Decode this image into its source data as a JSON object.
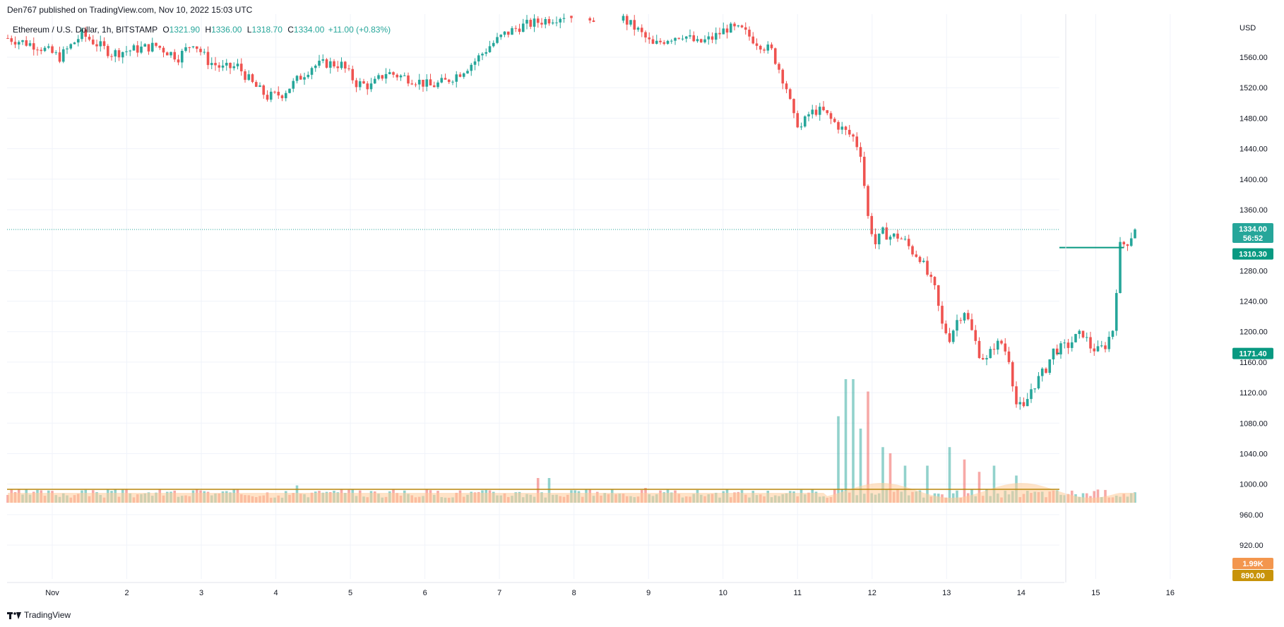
{
  "header": {
    "published_line": "Den767 published on TradingView.com, Nov 10, 2022 15:03 UTC"
  },
  "legend": {
    "symbol": "Ethereum / U.S. Dollar, 1h, BITSTAMP",
    "open_label": "O",
    "open_value": "1321.90",
    "high_label": "H",
    "high_value": "1336.00",
    "low_label": "L",
    "low_value": "1318.70",
    "close_label": "C",
    "close_value": "1334.00",
    "change": "+11.00 (+0.83%)"
  },
  "footer": {
    "brand": "TradingView"
  },
  "colors": {
    "up": "#26a69a",
    "down": "#ef5350",
    "level_line": "#089981",
    "volume_ma_line": "#b8860b",
    "volume_ma_fill": "#ffcc99",
    "grid": "#f0f3fa",
    "axis_text": "#131722"
  },
  "chart_data": {
    "type": "candlestick",
    "symbol": "ETHUSD",
    "interval": "1h",
    "y_axis": {
      "unit": "USD",
      "ticks": [
        1560,
        1520,
        1480,
        1440,
        1400,
        1360,
        1280,
        1240,
        1200,
        1160,
        1120,
        1080,
        1040,
        1000,
        960,
        920
      ],
      "tick_labels": [
        "1560.00",
        "1520.00",
        "1480.00",
        "1440.00",
        "1400.00",
        "1360.00",
        "1280.00",
        "1240.00",
        "1200.00",
        "1160.00",
        "1120.00",
        "1080.00",
        "1040.00",
        "1000.00",
        "960.00",
        "920.00"
      ],
      "range": [
        880,
        1600
      ]
    },
    "x_axis": {
      "tick_labels": [
        "Nov",
        "2",
        "3",
        "4",
        "5",
        "6",
        "7",
        "8",
        "9",
        "10",
        "11",
        "12",
        "13",
        "14",
        "15",
        "16"
      ]
    },
    "price_badges": {
      "last_price": "1334.00",
      "countdown": "56:52",
      "level_upper": "1310.30",
      "level_lower": "1171.40",
      "volume_last": "1.99K",
      "volume_ma": "890.00"
    },
    "horizontal_levels": [
      1310.3,
      1171.4
    ],
    "last_price": 1334.0,
    "price_anchors": [
      [
        0,
        1585
      ],
      [
        8,
        1575
      ],
      [
        14,
        1560
      ],
      [
        20,
        1590
      ],
      [
        28,
        1565
      ],
      [
        34,
        1570
      ],
      [
        40,
        1575
      ],
      [
        46,
        1560
      ],
      [
        50,
        1580
      ],
      [
        54,
        1555
      ],
      [
        58,
        1545
      ],
      [
        62,
        1548
      ],
      [
        66,
        1525
      ],
      [
        70,
        1508
      ],
      [
        74,
        1512
      ],
      [
        78,
        1530
      ],
      [
        82,
        1548
      ],
      [
        86,
        1552
      ],
      [
        90,
        1550
      ],
      [
        94,
        1526
      ],
      [
        98,
        1522
      ],
      [
        102,
        1540
      ],
      [
        106,
        1535
      ],
      [
        110,
        1530
      ],
      [
        114,
        1522
      ],
      [
        118,
        1528
      ],
      [
        122,
        1540
      ],
      [
        126,
        1555
      ],
      [
        130,
        1575
      ],
      [
        134,
        1590
      ],
      [
        138,
        1600
      ],
      [
        142,
        1605
      ],
      [
        146,
        1610
      ],
      [
        150,
        1615
      ],
      [
        154,
        1618
      ],
      [
        158,
        1612
      ],
      [
        162,
        1620
      ],
      [
        166,
        1610
      ],
      [
        170,
        1595
      ],
      [
        174,
        1575
      ],
      [
        178,
        1585
      ],
      [
        182,
        1590
      ],
      [
        186,
        1578
      ],
      [
        190,
        1585
      ],
      [
        194,
        1598
      ],
      [
        198,
        1595
      ],
      [
        202,
        1580
      ],
      [
        206,
        1568
      ],
      [
        208,
        1545
      ],
      [
        210,
        1520
      ],
      [
        212,
        1480
      ],
      [
        214,
        1468
      ],
      [
        216,
        1485
      ],
      [
        218,
        1490
      ],
      [
        220,
        1488
      ],
      [
        222,
        1478
      ],
      [
        224,
        1470
      ],
      [
        226,
        1462
      ],
      [
        228,
        1455
      ],
      [
        230,
        1435
      ],
      [
        232,
        1350
      ],
      [
        234,
        1315
      ],
      [
        236,
        1330
      ],
      [
        238,
        1325
      ],
      [
        240,
        1325
      ],
      [
        242,
        1318
      ],
      [
        244,
        1305
      ],
      [
        246,
        1298
      ],
      [
        248,
        1275
      ],
      [
        250,
        1255
      ],
      [
        252,
        1208
      ],
      [
        254,
        1192
      ],
      [
        256,
        1215
      ],
      [
        258,
        1228
      ],
      [
        260,
        1200
      ],
      [
        262,
        1172
      ],
      [
        264,
        1162
      ],
      [
        266,
        1182
      ],
      [
        268,
        1185
      ],
      [
        270,
        1165
      ],
      [
        272,
        1105
      ],
      [
        274,
        1098
      ],
      [
        276,
        1125
      ],
      [
        278,
        1138
      ],
      [
        280,
        1152
      ],
      [
        282,
        1175
      ],
      [
        284,
        1178
      ],
      [
        286,
        1182
      ],
      [
        288,
        1192
      ],
      [
        290,
        1198
      ],
      [
        292,
        1180
      ],
      [
        294,
        1175
      ],
      [
        296,
        1182
      ],
      [
        298,
        1203
      ],
      [
        300,
        1312
      ],
      [
        302,
        1318
      ],
      [
        304,
        1334
      ]
    ],
    "volume_spikes": [
      {
        "bar": 224,
        "value": 0.7
      },
      {
        "bar": 226,
        "value": 1.0
      },
      {
        "bar": 228,
        "value": 1.0
      },
      {
        "bar": 230,
        "value": 0.6
      },
      {
        "bar": 232,
        "value": 0.9
      },
      {
        "bar": 236,
        "value": 0.45
      },
      {
        "bar": 238,
        "value": 0.4
      },
      {
        "bar": 242,
        "value": 0.3
      },
      {
        "bar": 248,
        "value": 0.3
      },
      {
        "bar": 254,
        "value": 0.45
      },
      {
        "bar": 258,
        "value": 0.35
      },
      {
        "bar": 262,
        "value": 0.25
      },
      {
        "bar": 266,
        "value": 0.3
      },
      {
        "bar": 272,
        "value": 0.22
      },
      {
        "bar": 143,
        "value": 0.2
      },
      {
        "bar": 146,
        "value": 0.2
      },
      {
        "bar": 172,
        "value": 0.12
      },
      {
        "bar": 78,
        "value": 0.14
      },
      {
        "bar": 52,
        "value": 0.1
      },
      {
        "bar": 20,
        "value": 0.1
      }
    ]
  }
}
